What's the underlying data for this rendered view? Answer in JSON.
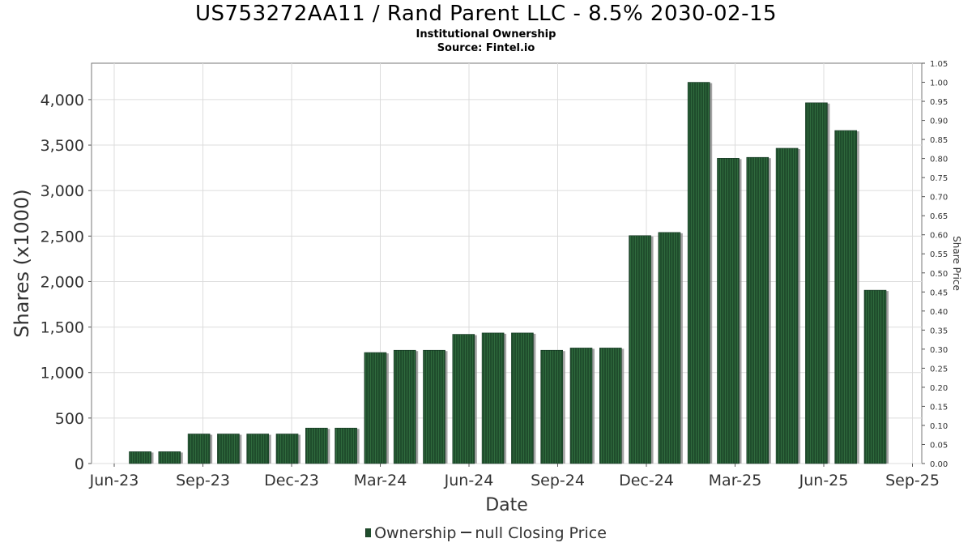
{
  "header": {
    "title": "US753272AA11 / Rand Parent LLC - 8.5% 2030-02-15",
    "subtitle": "Institutional Ownership",
    "source": "Source: Fintel.io"
  },
  "legend": {
    "ownership_label": "Ownership",
    "price_label": "null Closing Price"
  },
  "colors": {
    "bar": "#1f4d2c",
    "bar_stripe": "#2f6a3d",
    "bar_shadow": "#8c8c8c",
    "grid": "#dcdcdc",
    "plot_border": "#777777"
  },
  "chart_data": {
    "type": "bar",
    "xlabel": "Date",
    "ylabel": "Shares (x1000)",
    "y2label": "Share Price",
    "x_ticks": [
      "Jun-23",
      "Sep-23",
      "Dec-23",
      "Mar-24",
      "Jun-24",
      "Sep-24",
      "Dec-24",
      "Mar-25",
      "Jun-25",
      "Sep-25"
    ],
    "y_ticks": [
      "0",
      "500",
      "1,000",
      "1,500",
      "2,000",
      "2,500",
      "3,000",
      "3,500",
      "4,000"
    ],
    "y2_ticks": [
      "0.00",
      "0.05",
      "0.10",
      "0.15",
      "0.20",
      "0.25",
      "0.30",
      "0.35",
      "0.40",
      "0.45",
      "0.50",
      "0.55",
      "0.60",
      "0.65",
      "0.70",
      "0.75",
      "0.80",
      "0.85",
      "0.90",
      "0.95",
      "1.00",
      "1.05"
    ],
    "ylim": [
      0,
      4400
    ],
    "y2lim": [
      0,
      1.05
    ],
    "grid": true,
    "legend_position": "bottom",
    "series": [
      {
        "name": "Ownership",
        "values": [
          130,
          130,
          325,
          325,
          325,
          325,
          390,
          390,
          1220,
          1245,
          1245,
          1420,
          1435,
          1435,
          1245,
          1270,
          1270,
          2505,
          2540,
          4190,
          3355,
          3365,
          3465,
          3965,
          3660,
          1905
        ]
      }
    ]
  }
}
